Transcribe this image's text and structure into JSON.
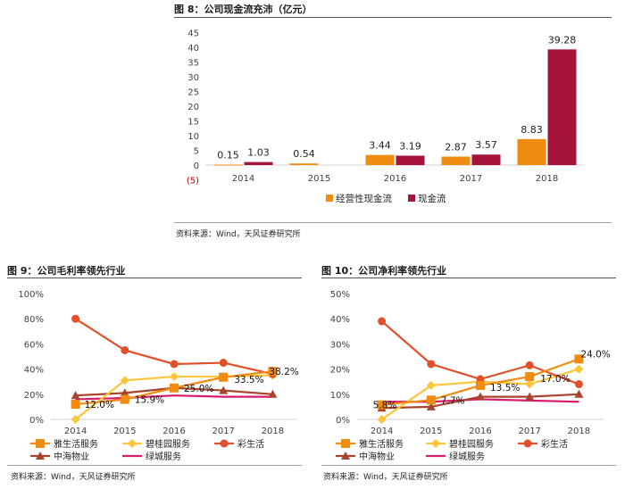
{
  "figure8": {
    "title": "图 8：公司现金流充沛（亿元）",
    "source": "资料来源：Wind，天风证券研究所"
  },
  "figure9": {
    "title": "图 9：公司毛利率领先行业",
    "source": "资料来源：Wind，天风证券研究所"
  },
  "figure10": {
    "title": "图 10：公司净利率领先行业",
    "source": "资料来源：Wind，天风证券研究所"
  },
  "colors": {
    "orange": "#F08C12",
    "yellow": "#FFC53A",
    "red": "#E0502A",
    "brown": "#A8432E",
    "crimson": "#A5123A",
    "magenta": "#D81B6A",
    "axis": "#D0D0D0",
    "tick": "#404040",
    "neg": "#C00000"
  },
  "chart_data": [
    {
      "id": "fig8",
      "type": "bar",
      "title": "公司现金流充沛（亿元）",
      "categories": [
        "2014",
        "2015",
        "2016",
        "2017",
        "2018"
      ],
      "series": [
        {
          "name": "经营性现金流",
          "color": "#F08C12",
          "values": [
            0.15,
            0.54,
            3.44,
            2.87,
            8.83
          ]
        },
        {
          "name": "现金流",
          "color": "#A5123A",
          "values": [
            1.03,
            null,
            3.19,
            3.57,
            39.28
          ]
        }
      ],
      "ylim": [
        -5,
        45
      ],
      "yticks": [
        -5,
        0,
        5,
        10,
        15,
        20,
        25,
        30,
        35,
        40,
        45
      ],
      "ytick_labels": [
        "(5)",
        "0",
        "5",
        "10",
        "15",
        "20",
        "25",
        "30",
        "35",
        "40",
        "45"
      ],
      "data_labels": [
        "0.15",
        "1.03",
        "0.54",
        "3.44",
        "3.19",
        "2.87",
        "3.57",
        "8.83",
        "39.28"
      ],
      "legend": "bottom"
    },
    {
      "id": "fig9",
      "type": "line",
      "title": "公司毛利率领先行业",
      "categories": [
        "2014",
        "2015",
        "2016",
        "2017",
        "2018"
      ],
      "ylim": [
        0,
        100
      ],
      "yticks": [
        "0%",
        "20%",
        "40%",
        "60%",
        "80%",
        "100%"
      ],
      "series": [
        {
          "name": "雅生活服务",
          "color": "#F08C12",
          "marker": "square",
          "values": [
            12.0,
            15.9,
            25.0,
            33.5,
            38.2
          ],
          "labels": [
            "12.0%",
            "15.9%",
            "25.0%",
            "33.5%",
            "38.2%"
          ]
        },
        {
          "name": "碧桂园服务",
          "color": "#FFC53A",
          "marker": "diamond",
          "values": [
            0,
            31,
            34,
            34,
            35
          ]
        },
        {
          "name": "彩生活",
          "color": "#E0502A",
          "marker": "circle",
          "values": [
            80,
            55,
            44,
            45,
            36
          ]
        },
        {
          "name": "中海物业",
          "color": "#A8432E",
          "marker": "triangle",
          "values": [
            19,
            21,
            25,
            23,
            20
          ]
        },
        {
          "name": "绿城服务",
          "color": "#D81B6A",
          "marker": "line",
          "values": [
            16,
            17,
            19,
            18,
            18
          ]
        }
      ],
      "legend": "bottom"
    },
    {
      "id": "fig10",
      "type": "line",
      "title": "公司净利率领先行业",
      "categories": [
        "2014",
        "2015",
        "2016",
        "2017",
        "2018"
      ],
      "ylim": [
        0,
        50
      ],
      "yticks": [
        "0%",
        "10%",
        "20%",
        "30%",
        "40%",
        "50%"
      ],
      "series": [
        {
          "name": "雅生活服务",
          "color": "#F08C12",
          "marker": "square",
          "values": [
            5.8,
            7.7,
            13.5,
            17.0,
            24.0
          ],
          "labels": [
            "5.8%",
            "7.7%",
            "13.5%",
            "17.0%",
            "24.0%"
          ]
        },
        {
          "name": "碧桂园服务",
          "color": "#FFC53A",
          "marker": "diamond",
          "values": [
            0,
            13.5,
            15,
            14,
            20
          ]
        },
        {
          "name": "彩生活",
          "color": "#E0502A",
          "marker": "circle",
          "values": [
            39,
            22,
            16,
            21.5,
            14
          ]
        },
        {
          "name": "中海物业",
          "color": "#A8432E",
          "marker": "triangle",
          "values": [
            4.5,
            5,
            9,
            9,
            10
          ]
        },
        {
          "name": "绿城服务",
          "color": "#D81B6A",
          "marker": "line",
          "values": [
            7,
            7,
            8,
            7.5,
            7
          ]
        }
      ],
      "legend": "bottom"
    }
  ]
}
